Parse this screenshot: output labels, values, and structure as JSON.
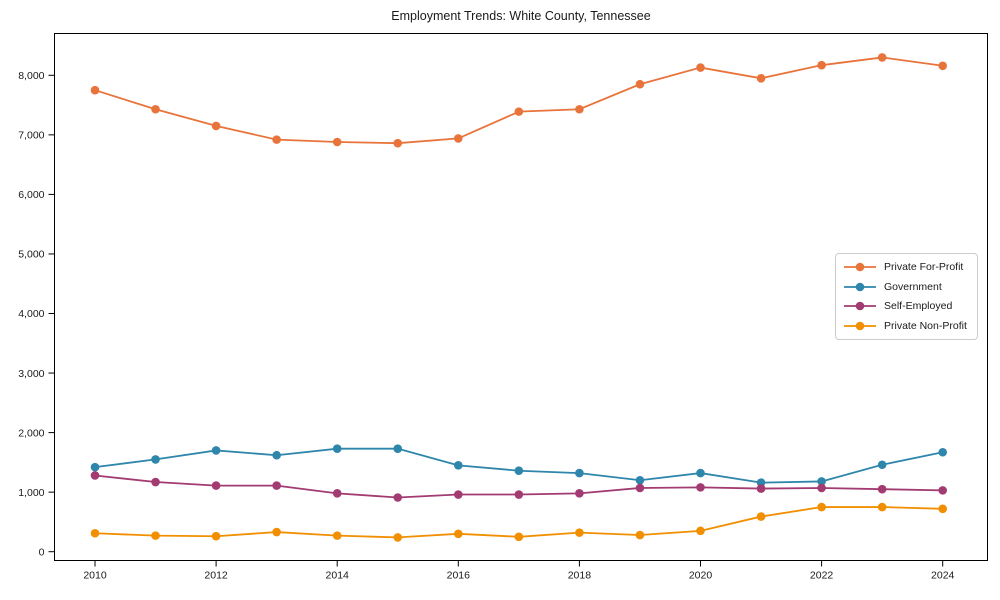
{
  "chart_data": {
    "type": "line",
    "title": "Employment Trends: White County, Tennessee",
    "x": [
      2010,
      2011,
      2012,
      2013,
      2014,
      2015,
      2016,
      2017,
      2018,
      2019,
      2020,
      2021,
      2022,
      2023,
      2024
    ],
    "x_tick_labels": [
      "2010",
      "2012",
      "2014",
      "2016",
      "2018",
      "2020",
      "2022",
      "2024"
    ],
    "y_tick_values": [
      0,
      1000,
      2000,
      3000,
      4000,
      5000,
      6000,
      7000,
      8000
    ],
    "y_tick_labels": [
      "0",
      "1,000",
      "2,000",
      "3,000",
      "4,000",
      "5,000",
      "6,000",
      "7,000",
      "8,000"
    ],
    "xlim": [
      2009.33,
      2024.74
    ],
    "ylim": [
      -150,
      8710
    ],
    "grid": false,
    "legend_position": "center-right",
    "series": [
      {
        "name": "Private For-Profit",
        "color": "#E8743B",
        "values": [
          7750,
          7430,
          7150,
          6920,
          6880,
          6860,
          6940,
          7390,
          7430,
          7850,
          8130,
          7950,
          8170,
          8300,
          8160
        ]
      },
      {
        "name": "Government",
        "color": "#2E86AB",
        "values": [
          1420,
          1550,
          1700,
          1620,
          1730,
          1730,
          1450,
          1360,
          1320,
          1200,
          1320,
          1160,
          1180,
          1460,
          1670
        ]
      },
      {
        "name": "Self-Employed",
        "color": "#A23B72",
        "values": [
          1280,
          1170,
          1110,
          1110,
          980,
          910,
          960,
          960,
          980,
          1070,
          1080,
          1060,
          1070,
          1050,
          1030
        ]
      },
      {
        "name": "Private Non-Profit",
        "color": "#F18F01",
        "values": [
          310,
          270,
          260,
          330,
          270,
          240,
          300,
          250,
          320,
          280,
          350,
          590,
          750,
          750,
          720
        ]
      }
    ]
  }
}
